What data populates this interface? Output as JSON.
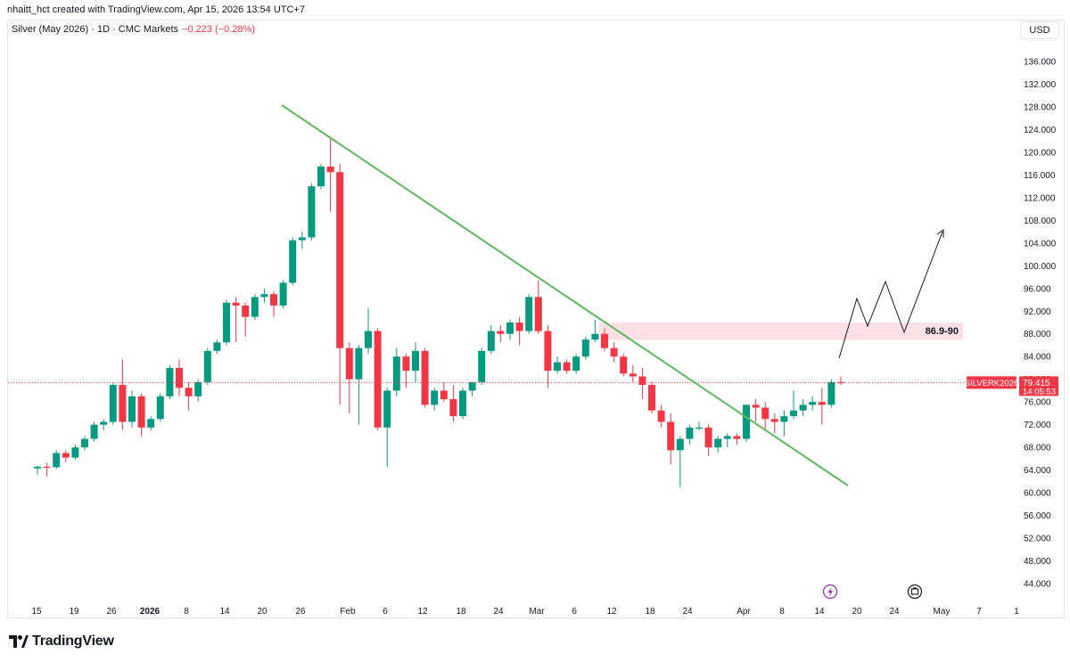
{
  "header": {
    "credit": "nhaitt_hct created with TradingView.com, Apr 15, 2026 13:54 UTC+7",
    "symbol_line": "Silver (May 2026) · 1D · CMC Markets",
    "change": "−0.223 (−0.28%)",
    "currency": "USD"
  },
  "price_label": {
    "ticker": "SILVERK2026",
    "price": "79.415",
    "countdown": "14:05:53"
  },
  "annotation": {
    "zone_label": "86.9-90"
  },
  "footer": {
    "brand": "TradingView"
  },
  "icons": [
    "lightning-icon",
    "alarm-icon"
  ],
  "colors": {
    "up": "#089981",
    "down": "#f23645",
    "trendline": "#5cb85c",
    "zone": "#fbe0e6",
    "price_label_bg": "#f23645"
  },
  "chart_data": {
    "type": "candlestick",
    "ylim": [
      40,
      138
    ],
    "y_ticks": [
      44,
      48,
      52,
      56,
      60,
      64,
      68,
      72,
      76,
      80,
      84,
      88,
      92,
      96,
      100,
      104,
      108,
      112,
      116,
      120,
      124,
      128,
      132,
      136
    ],
    "x_ticks": [
      "15",
      "19",
      "26",
      "2026",
      "8",
      "14",
      "20",
      "26",
      "Feb",
      "6",
      "12",
      "18",
      "24",
      "Mar",
      "6",
      "12",
      "18",
      "24",
      "Apr",
      "8",
      "14",
      "20",
      "24",
      "May",
      "7",
      "1"
    ],
    "current_price": 79.415,
    "candles": [
      {
        "o": 64.3,
        "h": 64.8,
        "l": 63.2,
        "c": 64.6
      },
      {
        "o": 64.6,
        "h": 65.3,
        "l": 62.9,
        "c": 64.5
      },
      {
        "o": 64.5,
        "h": 67.5,
        "l": 64.2,
        "c": 67.0
      },
      {
        "o": 67.0,
        "h": 67.5,
        "l": 65.4,
        "c": 66.2
      },
      {
        "o": 66.2,
        "h": 68.5,
        "l": 65.8,
        "c": 68.0
      },
      {
        "o": 68.0,
        "h": 70.0,
        "l": 67.5,
        "c": 69.5
      },
      {
        "o": 69.5,
        "h": 72.5,
        "l": 69.0,
        "c": 72.0
      },
      {
        "o": 72.0,
        "h": 73.0,
        "l": 71.0,
        "c": 72.5
      },
      {
        "o": 72.5,
        "h": 79.5,
        "l": 72.0,
        "c": 79.0
      },
      {
        "o": 79.0,
        "h": 83.5,
        "l": 71.0,
        "c": 72.5
      },
      {
        "o": 72.5,
        "h": 78.0,
        "l": 71.5,
        "c": 77.0
      },
      {
        "o": 77.0,
        "h": 77.5,
        "l": 70.0,
        "c": 71.5
      },
      {
        "o": 71.5,
        "h": 73.5,
        "l": 71.0,
        "c": 73.0
      },
      {
        "o": 73.0,
        "h": 77.5,
        "l": 72.5,
        "c": 77.0
      },
      {
        "o": 77.0,
        "h": 82.5,
        "l": 76.5,
        "c": 82.0
      },
      {
        "o": 82.0,
        "h": 83.5,
        "l": 77.0,
        "c": 78.5
      },
      {
        "o": 78.5,
        "h": 79.5,
        "l": 74.5,
        "c": 77.0
      },
      {
        "o": 77.0,
        "h": 80.0,
        "l": 76.0,
        "c": 79.5
      },
      {
        "o": 79.5,
        "h": 85.5,
        "l": 79.0,
        "c": 85.0
      },
      {
        "o": 85.0,
        "h": 87.0,
        "l": 84.5,
        "c": 86.5
      },
      {
        "o": 86.5,
        "h": 94.0,
        "l": 86.0,
        "c": 93.5
      },
      {
        "o": 93.5,
        "h": 94.5,
        "l": 86.5,
        "c": 93.0
      },
      {
        "o": 93.0,
        "h": 93.5,
        "l": 87.5,
        "c": 91.0
      },
      {
        "o": 91.0,
        "h": 95.0,
        "l": 90.5,
        "c": 94.5
      },
      {
        "o": 94.5,
        "h": 96.0,
        "l": 93.5,
        "c": 95.0
      },
      {
        "o": 95.0,
        "h": 95.5,
        "l": 91.0,
        "c": 93.0
      },
      {
        "o": 93.0,
        "h": 97.5,
        "l": 92.5,
        "c": 97.0
      },
      {
        "o": 97.0,
        "h": 105.0,
        "l": 96.5,
        "c": 104.5
      },
      {
        "o": 104.5,
        "h": 106.0,
        "l": 103.0,
        "c": 105.0
      },
      {
        "o": 105.0,
        "h": 114.5,
        "l": 104.5,
        "c": 114.0
      },
      {
        "o": 114.0,
        "h": 118.0,
        "l": 113.5,
        "c": 117.5
      },
      {
        "o": 117.5,
        "h": 122.5,
        "l": 109.5,
        "c": 116.5
      },
      {
        "o": 116.5,
        "h": 118.0,
        "l": 75.5,
        "c": 85.5
      },
      {
        "o": 85.5,
        "h": 86.5,
        "l": 74.0,
        "c": 80.0
      },
      {
        "o": 80.0,
        "h": 86.0,
        "l": 72.0,
        "c": 85.5
      },
      {
        "o": 85.5,
        "h": 92.5,
        "l": 84.5,
        "c": 88.5
      },
      {
        "o": 88.5,
        "h": 89.0,
        "l": 71.0,
        "c": 71.5
      },
      {
        "o": 71.5,
        "h": 78.5,
        "l": 64.5,
        "c": 78.0
      },
      {
        "o": 78.0,
        "h": 85.5,
        "l": 77.0,
        "c": 84.0
      },
      {
        "o": 84.0,
        "h": 84.5,
        "l": 78.5,
        "c": 81.5
      },
      {
        "o": 81.5,
        "h": 86.5,
        "l": 79.5,
        "c": 85.0
      },
      {
        "o": 85.0,
        "h": 85.5,
        "l": 75.0,
        "c": 75.5
      },
      {
        "o": 75.5,
        "h": 78.5,
        "l": 74.5,
        "c": 78.0
      },
      {
        "o": 78.0,
        "h": 79.5,
        "l": 76.0,
        "c": 76.5
      },
      {
        "o": 76.5,
        "h": 79.0,
        "l": 72.5,
        "c": 73.5
      },
      {
        "o": 73.5,
        "h": 78.5,
        "l": 73.0,
        "c": 78.0
      },
      {
        "o": 78.0,
        "h": 79.5,
        "l": 77.0,
        "c": 79.5
      },
      {
        "o": 79.5,
        "h": 85.5,
        "l": 79.0,
        "c": 85.0
      },
      {
        "o": 85.0,
        "h": 89.5,
        "l": 84.5,
        "c": 88.5
      },
      {
        "o": 88.5,
        "h": 89.5,
        "l": 86.5,
        "c": 88.0
      },
      {
        "o": 88.0,
        "h": 90.5,
        "l": 87.0,
        "c": 90.0
      },
      {
        "o": 90.0,
        "h": 91.0,
        "l": 86.0,
        "c": 88.5
      },
      {
        "o": 88.5,
        "h": 95.0,
        "l": 88.0,
        "c": 94.5
      },
      {
        "o": 94.5,
        "h": 97.5,
        "l": 88.0,
        "c": 88.5
      },
      {
        "o": 88.5,
        "h": 89.5,
        "l": 78.5,
        "c": 81.5
      },
      {
        "o": 81.5,
        "h": 84.0,
        "l": 81.0,
        "c": 83.0
      },
      {
        "o": 83.0,
        "h": 83.5,
        "l": 81.0,
        "c": 81.5
      },
      {
        "o": 81.5,
        "h": 84.5,
        "l": 81.0,
        "c": 84.0
      },
      {
        "o": 84.0,
        "h": 87.5,
        "l": 83.5,
        "c": 87.0
      },
      {
        "o": 87.0,
        "h": 90.5,
        "l": 86.5,
        "c": 88.0
      },
      {
        "o": 88.0,
        "h": 89.0,
        "l": 85.0,
        "c": 85.5
      },
      {
        "o": 85.5,
        "h": 86.5,
        "l": 83.0,
        "c": 84.0
      },
      {
        "o": 84.0,
        "h": 84.5,
        "l": 80.5,
        "c": 81.0
      },
      {
        "o": 81.0,
        "h": 82.5,
        "l": 79.5,
        "c": 80.5
      },
      {
        "o": 80.5,
        "h": 82.0,
        "l": 76.5,
        "c": 79.0
      },
      {
        "o": 79.0,
        "h": 79.5,
        "l": 74.0,
        "c": 74.5
      },
      {
        "o": 74.5,
        "h": 75.5,
        "l": 71.5,
        "c": 72.5
      },
      {
        "o": 72.5,
        "h": 74.0,
        "l": 65.0,
        "c": 67.5
      },
      {
        "o": 67.5,
        "h": 70.0,
        "l": 61.0,
        "c": 69.5
      },
      {
        "o": 69.5,
        "h": 72.0,
        "l": 68.5,
        "c": 71.5
      },
      {
        "o": 71.5,
        "h": 72.5,
        "l": 71.0,
        "c": 71.5
      },
      {
        "o": 71.5,
        "h": 72.0,
        "l": 66.5,
        "c": 68.0
      },
      {
        "o": 68.0,
        "h": 70.0,
        "l": 67.0,
        "c": 69.5
      },
      {
        "o": 69.5,
        "h": 70.5,
        "l": 68.0,
        "c": 70.0
      },
      {
        "o": 70.0,
        "h": 70.5,
        "l": 68.5,
        "c": 69.5
      },
      {
        "o": 69.5,
        "h": 75.5,
        "l": 69.0,
        "c": 75.5
      },
      {
        "o": 75.5,
        "h": 76.5,
        "l": 72.5,
        "c": 75.0
      },
      {
        "o": 75.0,
        "h": 76.0,
        "l": 71.0,
        "c": 73.0
      },
      {
        "o": 73.0,
        "h": 74.0,
        "l": 70.5,
        "c": 72.5
      },
      {
        "o": 72.5,
        "h": 74.5,
        "l": 70.0,
        "c": 73.5
      },
      {
        "o": 73.5,
        "h": 78.0,
        "l": 73.0,
        "c": 74.5
      },
      {
        "o": 74.5,
        "h": 76.5,
        "l": 73.5,
        "c": 75.5
      },
      {
        "o": 75.5,
        "h": 77.0,
        "l": 74.5,
        "c": 76.0
      },
      {
        "o": 76.0,
        "h": 78.5,
        "l": 72.0,
        "c": 75.5
      },
      {
        "o": 75.5,
        "h": 80.0,
        "l": 75.0,
        "c": 79.5
      },
      {
        "o": 79.5,
        "h": 80.5,
        "l": 79.0,
        "c": 79.4
      }
    ]
  }
}
